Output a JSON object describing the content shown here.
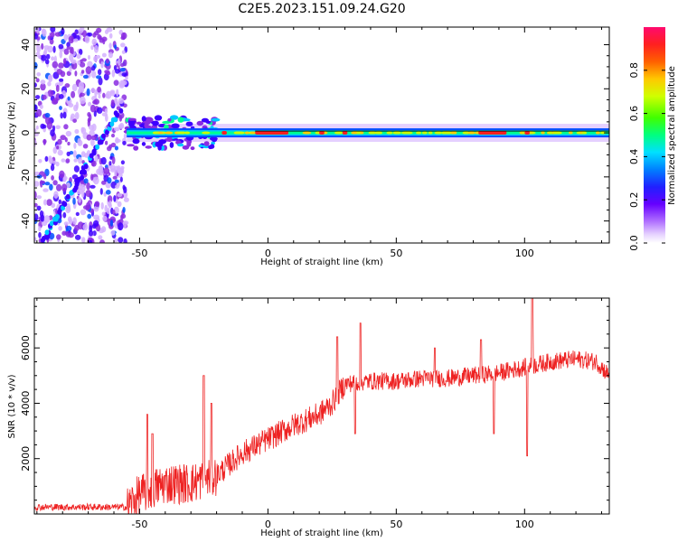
{
  "title": "C2E5.2023.151.09.24.G20",
  "chart_data": [
    {
      "type": "heatmap",
      "xlabel": "Height of straight line (km)",
      "ylabel": "Frequency (Hz)",
      "xlim": [
        -91,
        133
      ],
      "ylim": [
        -50,
        48
      ],
      "xticks": [
        -50,
        0,
        50,
        100
      ],
      "yticks": [
        -40,
        -20,
        0,
        20,
        40
      ],
      "xtick_labels": [
        "-50",
        "0",
        "50",
        "100"
      ],
      "ytick_labels": [
        "-40",
        "-20",
        "0",
        "20",
        "40"
      ],
      "colorbar": {
        "label": "Normalized spectral amplitude",
        "range": [
          0,
          1
        ],
        "ticks": [
          0.0,
          0.2,
          0.4,
          0.6,
          0.8
        ],
        "tick_labels": [
          "0.0",
          "0.2",
          "0.4",
          "0.6",
          "0.8"
        ],
        "colormap": [
          "#ffffff",
          "#d4b0ff",
          "#8a2be2",
          "#3d00ff",
          "#0050ff",
          "#00c8ff",
          "#00ff90",
          "#32ff00",
          "#c8ff00",
          "#ffd000",
          "#ff7000",
          "#ff2020",
          "#ff0a64"
        ]
      },
      "noise_region_x": [
        -91,
        -55
      ],
      "diagonal_trace": {
        "x": [
          -88,
          -58
        ],
        "y": [
          -50,
          10
        ]
      },
      "main_line": {
        "y": 0,
        "x_start": -55,
        "x_end": 133
      },
      "hot_segments": [
        {
          "x_start": -18,
          "x_end": -16
        },
        {
          "x_start": -5,
          "x_end": 8
        },
        {
          "x_start": 20,
          "x_end": 22
        },
        {
          "x_start": 29,
          "x_end": 31
        },
        {
          "x_start": 82,
          "x_end": 93
        },
        {
          "x_start": 100,
          "x_end": 102
        }
      ],
      "grid": false
    },
    {
      "type": "line",
      "xlabel": "Height of straight line (km)",
      "ylabel": "SNR (10 * v/v)",
      "xlim": [
        -91,
        133
      ],
      "ylim": [
        0,
        7800
      ],
      "xticks": [
        -50,
        0,
        50,
        100
      ],
      "yticks": [
        2000,
        4000,
        6000
      ],
      "xtick_labels": [
        "-50",
        "0",
        "50",
        "100"
      ],
      "ytick_labels": [
        "2000",
        "4000",
        "6000"
      ],
      "series": [
        {
          "color": "#ee2222",
          "trend": [
            {
              "x": -91,
              "y": 250
            },
            {
              "x": -55,
              "y": 250
            },
            {
              "x": -50,
              "y": 700
            },
            {
              "x": -40,
              "y": 1100
            },
            {
              "x": -30,
              "y": 1100
            },
            {
              "x": -20,
              "y": 1400
            },
            {
              "x": -10,
              "y": 2200
            },
            {
              "x": 0,
              "y": 2700
            },
            {
              "x": 10,
              "y": 3200
            },
            {
              "x": 20,
              "y": 3600
            },
            {
              "x": 25,
              "y": 4000
            },
            {
              "x": 30,
              "y": 4700
            },
            {
              "x": 40,
              "y": 4800
            },
            {
              "x": 50,
              "y": 4800
            },
            {
              "x": 60,
              "y": 4900
            },
            {
              "x": 70,
              "y": 4900
            },
            {
              "x": 80,
              "y": 5000
            },
            {
              "x": 90,
              "y": 5100
            },
            {
              "x": 100,
              "y": 5300
            },
            {
              "x": 110,
              "y": 5500
            },
            {
              "x": 120,
              "y": 5600
            },
            {
              "x": 128,
              "y": 5500
            },
            {
              "x": 133,
              "y": 5000
            }
          ],
          "spikes": [
            {
              "x": -47,
              "y": 3600
            },
            {
              "x": -45,
              "y": 2900
            },
            {
              "x": -25,
              "y": 5000
            },
            {
              "x": -22,
              "y": 4000
            },
            {
              "x": 27,
              "y": 6400
            },
            {
              "x": 36,
              "y": 6900
            },
            {
              "x": 65,
              "y": 6000
            },
            {
              "x": 83,
              "y": 6300
            },
            {
              "x": 88,
              "y": 6000
            },
            {
              "x": 101,
              "y": 7300
            },
            {
              "x": 103,
              "y": 7800
            },
            {
              "x": 101,
              "y": 2100
            },
            {
              "x": 88,
              "y": 2900
            },
            {
              "x": 34,
              "y": 2900
            }
          ]
        }
      ],
      "grid": false
    }
  ]
}
